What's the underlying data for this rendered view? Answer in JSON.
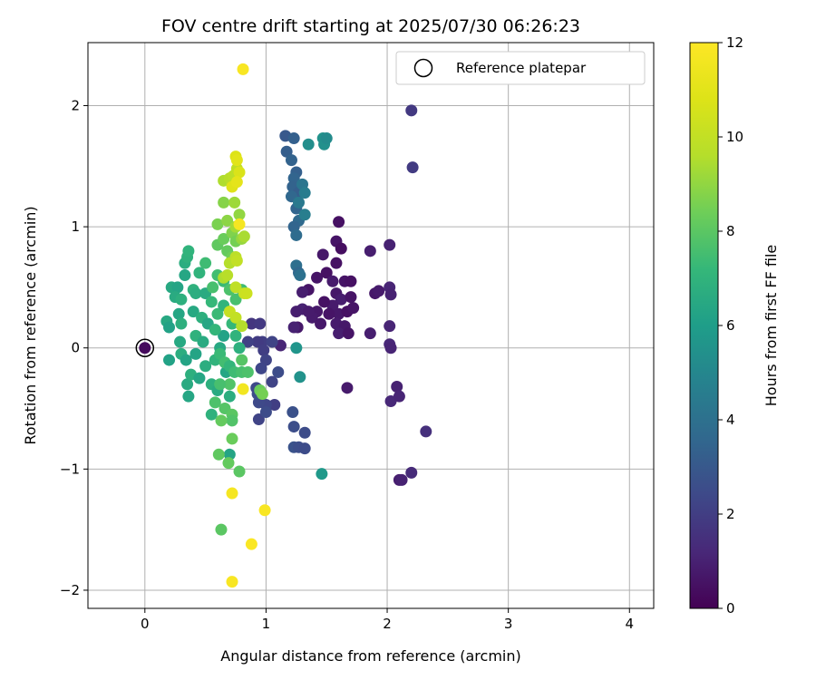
{
  "chart_data": {
    "type": "scatter",
    "title": "FOV centre drift starting at 2025/07/30 06:26:23",
    "xlabel": "Angular distance from reference (arcmin)",
    "ylabel": "Rotation from reference (arcmin)",
    "xlim": [
      -0.47,
      4.2
    ],
    "ylim": [
      -2.15,
      2.52
    ],
    "xticks": [
      0,
      1,
      2,
      3,
      4
    ],
    "yticks": [
      -2,
      -1,
      0,
      1,
      2
    ],
    "xtick_labels": [
      "0",
      "1",
      "2",
      "3",
      "4"
    ],
    "ytick_labels": [
      "−2",
      "−1",
      "0",
      "1",
      "2"
    ],
    "grid": true,
    "legend": {
      "placement": "top-right",
      "label": "Reference platepar"
    },
    "colorbar": {
      "label": "Hours from first FF file",
      "colormap": "viridis",
      "range": [
        0,
        12
      ],
      "ticks": [
        0,
        2,
        4,
        6,
        8,
        10,
        12
      ],
      "tick_labels": [
        "0",
        "2",
        "4",
        "6",
        "8",
        "10",
        "12"
      ]
    },
    "reference_point": {
      "x": 0,
      "y": 0
    },
    "points": [
      {
        "x": 0.0,
        "y": 0.0,
        "h": 0.3
      },
      {
        "x": 1.6,
        "y": 1.04,
        "h": 0.5
      },
      {
        "x": 1.58,
        "y": 0.88,
        "h": 0.6
      },
      {
        "x": 1.62,
        "y": 0.82,
        "h": 0.4
      },
      {
        "x": 1.58,
        "y": 0.7,
        "h": 0.5
      },
      {
        "x": 1.47,
        "y": 0.77,
        "h": 0.7
      },
      {
        "x": 1.42,
        "y": 0.58,
        "h": 0.6
      },
      {
        "x": 1.5,
        "y": 0.62,
        "h": 0.5
      },
      {
        "x": 1.55,
        "y": 0.55,
        "h": 0.8
      },
      {
        "x": 1.65,
        "y": 0.55,
        "h": 0.6
      },
      {
        "x": 1.7,
        "y": 0.55,
        "h": 0.5
      },
      {
        "x": 1.58,
        "y": 0.45,
        "h": 0.7
      },
      {
        "x": 1.62,
        "y": 0.4,
        "h": 0.9
      },
      {
        "x": 1.7,
        "y": 0.42,
        "h": 0.6
      },
      {
        "x": 1.55,
        "y": 0.35,
        "h": 0.8
      },
      {
        "x": 1.6,
        "y": 0.28,
        "h": 0.7
      },
      {
        "x": 1.67,
        "y": 0.3,
        "h": 0.5
      },
      {
        "x": 1.72,
        "y": 0.33,
        "h": 0.6
      },
      {
        "x": 1.58,
        "y": 0.2,
        "h": 0.8
      },
      {
        "x": 1.65,
        "y": 0.18,
        "h": 0.7
      },
      {
        "x": 1.6,
        "y": 0.12,
        "h": 0.9
      },
      {
        "x": 1.68,
        "y": 0.12,
        "h": 0.6
      },
      {
        "x": 1.42,
        "y": 0.3,
        "h": 0.7
      },
      {
        "x": 1.38,
        "y": 0.25,
        "h": 0.8
      },
      {
        "x": 1.35,
        "y": 0.48,
        "h": 0.6
      },
      {
        "x": 1.3,
        "y": 0.46,
        "h": 0.9
      },
      {
        "x": 1.3,
        "y": 0.32,
        "h": 1.0
      },
      {
        "x": 1.35,
        "y": 0.3,
        "h": 0.8
      },
      {
        "x": 1.25,
        "y": 0.3,
        "h": 0.9
      },
      {
        "x": 1.26,
        "y": 0.17,
        "h": 0.7
      },
      {
        "x": 1.23,
        "y": 0.17,
        "h": 1.0
      },
      {
        "x": 1.12,
        "y": 0.02,
        "h": 1.1
      },
      {
        "x": 1.48,
        "y": 0.38,
        "h": 0.5
      },
      {
        "x": 1.52,
        "y": 0.28,
        "h": 0.6
      },
      {
        "x": 1.45,
        "y": 0.2,
        "h": 0.7
      },
      {
        "x": 1.67,
        "y": -0.33,
        "h": 0.8
      },
      {
        "x": 1.86,
        "y": 0.8,
        "h": 0.9
      },
      {
        "x": 1.9,
        "y": 0.45,
        "h": 0.7
      },
      {
        "x": 1.93,
        "y": 0.47,
        "h": 0.8
      },
      {
        "x": 1.86,
        "y": 0.12,
        "h": 0.9
      },
      {
        "x": 2.02,
        "y": 0.85,
        "h": 1.0
      },
      {
        "x": 2.02,
        "y": 0.5,
        "h": 1.1
      },
      {
        "x": 2.03,
        "y": 0.44,
        "h": 1.0
      },
      {
        "x": 2.02,
        "y": 0.18,
        "h": 1.1
      },
      {
        "x": 2.02,
        "y": 0.03,
        "h": 1.2
      },
      {
        "x": 2.03,
        "y": 0.0,
        "h": 1.1
      },
      {
        "x": 2.03,
        "y": -0.44,
        "h": 1.2
      },
      {
        "x": 2.08,
        "y": -0.32,
        "h": 1.0
      },
      {
        "x": 2.1,
        "y": -0.4,
        "h": 1.1
      },
      {
        "x": 2.1,
        "y": -1.09,
        "h": 0.9
      },
      {
        "x": 2.12,
        "y": -1.09,
        "h": 1.0
      },
      {
        "x": 2.2,
        "y": -1.03,
        "h": 1.3
      },
      {
        "x": 2.32,
        "y": -0.69,
        "h": 1.5
      },
      {
        "x": 2.2,
        "y": 1.96,
        "h": 1.8
      },
      {
        "x": 2.21,
        "y": 1.49,
        "h": 1.9
      },
      {
        "x": 0.88,
        "y": 0.2,
        "h": 1.7
      },
      {
        "x": 0.95,
        "y": 0.2,
        "h": 1.8
      },
      {
        "x": 0.97,
        "y": 0.05,
        "h": 2.0
      },
      {
        "x": 0.93,
        "y": 0.05,
        "h": 1.9
      },
      {
        "x": 0.85,
        "y": 0.05,
        "h": 2.1
      },
      {
        "x": 1.05,
        "y": 0.05,
        "h": 2.2
      },
      {
        "x": 0.98,
        "y": -0.02,
        "h": 2.0
      },
      {
        "x": 1.0,
        "y": -0.1,
        "h": 2.2
      },
      {
        "x": 0.96,
        "y": -0.17,
        "h": 2.3
      },
      {
        "x": 1.05,
        "y": -0.28,
        "h": 2.2
      },
      {
        "x": 1.07,
        "y": -0.47,
        "h": 2.0
      },
      {
        "x": 1.0,
        "y": -0.47,
        "h": 2.3
      },
      {
        "x": 0.94,
        "y": -0.45,
        "h": 2.4
      },
      {
        "x": 0.94,
        "y": -0.59,
        "h": 2.2
      },
      {
        "x": 1.0,
        "y": -0.53,
        "h": 2.5
      },
      {
        "x": 0.93,
        "y": -0.38,
        "h": 2.6
      },
      {
        "x": 0.92,
        "y": -0.33,
        "h": 2.4
      },
      {
        "x": 1.1,
        "y": -0.2,
        "h": 2.5
      },
      {
        "x": 1.22,
        "y": -0.53,
        "h": 2.7
      },
      {
        "x": 1.23,
        "y": -0.65,
        "h": 2.6
      },
      {
        "x": 1.32,
        "y": -0.7,
        "h": 2.5
      },
      {
        "x": 1.23,
        "y": -0.82,
        "h": 2.8
      },
      {
        "x": 1.27,
        "y": -0.82,
        "h": 2.6
      },
      {
        "x": 1.32,
        "y": -0.83,
        "h": 2.5
      },
      {
        "x": 1.16,
        "y": 1.75,
        "h": 3.0
      },
      {
        "x": 1.23,
        "y": 1.73,
        "h": 3.3
      },
      {
        "x": 1.17,
        "y": 1.62,
        "h": 3.2
      },
      {
        "x": 1.21,
        "y": 1.55,
        "h": 3.4
      },
      {
        "x": 1.25,
        "y": 1.45,
        "h": 3.3
      },
      {
        "x": 1.23,
        "y": 1.4,
        "h": 3.5
      },
      {
        "x": 1.22,
        "y": 1.33,
        "h": 3.4
      },
      {
        "x": 1.27,
        "y": 1.28,
        "h": 3.2
      },
      {
        "x": 1.21,
        "y": 1.25,
        "h": 3.6
      },
      {
        "x": 1.25,
        "y": 1.15,
        "h": 3.5
      },
      {
        "x": 1.27,
        "y": 1.05,
        "h": 3.7
      },
      {
        "x": 1.23,
        "y": 1.0,
        "h": 3.5
      },
      {
        "x": 1.25,
        "y": 0.93,
        "h": 3.8
      },
      {
        "x": 1.25,
        "y": 0.68,
        "h": 3.9
      },
      {
        "x": 1.27,
        "y": 0.62,
        "h": 3.6
      },
      {
        "x": 1.28,
        "y": 0.6,
        "h": 4.0
      },
      {
        "x": 1.3,
        "y": 1.35,
        "h": 4.2
      },
      {
        "x": 1.32,
        "y": 1.28,
        "h": 4.5
      },
      {
        "x": 1.27,
        "y": 1.2,
        "h": 4.4
      },
      {
        "x": 1.32,
        "y": 1.1,
        "h": 4.6
      },
      {
        "x": 1.35,
        "y": 1.68,
        "h": 5.3
      },
      {
        "x": 1.47,
        "y": 1.73,
        "h": 5.5
      },
      {
        "x": 1.48,
        "y": 1.68,
        "h": 5.4
      },
      {
        "x": 1.5,
        "y": 1.73,
        "h": 5.2
      },
      {
        "x": 1.25,
        "y": 0.0,
        "h": 5.6
      },
      {
        "x": 1.28,
        "y": -0.24,
        "h": 5.5
      },
      {
        "x": 1.46,
        "y": -1.04,
        "h": 5.8
      },
      {
        "x": 0.22,
        "y": 0.5,
        "h": 6.5
      },
      {
        "x": 0.27,
        "y": 0.5,
        "h": 6.3
      },
      {
        "x": 0.25,
        "y": 0.42,
        "h": 6.6
      },
      {
        "x": 0.3,
        "y": 0.4,
        "h": 6.8
      },
      {
        "x": 0.33,
        "y": 0.6,
        "h": 6.4
      },
      {
        "x": 0.33,
        "y": 0.7,
        "h": 6.7
      },
      {
        "x": 0.35,
        "y": 0.75,
        "h": 6.9
      },
      {
        "x": 0.36,
        "y": 0.8,
        "h": 7.0
      },
      {
        "x": 0.18,
        "y": 0.22,
        "h": 6.5
      },
      {
        "x": 0.2,
        "y": 0.17,
        "h": 6.2
      },
      {
        "x": 0.28,
        "y": 0.28,
        "h": 6.4
      },
      {
        "x": 0.3,
        "y": 0.2,
        "h": 6.8
      },
      {
        "x": 0.29,
        "y": 0.05,
        "h": 6.5
      },
      {
        "x": 0.3,
        "y": -0.05,
        "h": 6.7
      },
      {
        "x": 0.34,
        "y": -0.1,
        "h": 6.3
      },
      {
        "x": 0.35,
        "y": -0.3,
        "h": 6.6
      },
      {
        "x": 0.36,
        "y": -0.4,
        "h": 6.4
      },
      {
        "x": 0.38,
        "y": -0.22,
        "h": 6.8
      },
      {
        "x": 0.2,
        "y": -0.1,
        "h": 6.2
      },
      {
        "x": 0.4,
        "y": 0.48,
        "h": 6.9
      },
      {
        "x": 0.45,
        "y": 0.62,
        "h": 7.0
      },
      {
        "x": 0.42,
        "y": 0.45,
        "h": 6.7
      },
      {
        "x": 0.5,
        "y": 0.45,
        "h": 6.6
      },
      {
        "x": 0.4,
        "y": 0.3,
        "h": 6.5
      },
      {
        "x": 0.47,
        "y": 0.25,
        "h": 6.8
      },
      {
        "x": 0.52,
        "y": 0.2,
        "h": 6.4
      },
      {
        "x": 0.42,
        "y": 0.1,
        "h": 6.9
      },
      {
        "x": 0.48,
        "y": 0.05,
        "h": 6.6
      },
      {
        "x": 0.42,
        "y": -0.05,
        "h": 6.3
      },
      {
        "x": 0.5,
        "y": -0.15,
        "h": 6.7
      },
      {
        "x": 0.45,
        "y": -0.25,
        "h": 6.4
      },
      {
        "x": 0.55,
        "y": -0.3,
        "h": 6.8
      },
      {
        "x": 0.55,
        "y": -0.55,
        "h": 6.9
      },
      {
        "x": 0.6,
        "y": -0.35,
        "h": 6.6
      },
      {
        "x": 0.58,
        "y": -0.1,
        "h": 7.0
      },
      {
        "x": 0.62,
        "y": 0.0,
        "h": 6.5
      },
      {
        "x": 0.65,
        "y": 0.1,
        "h": 6.2
      },
      {
        "x": 0.67,
        "y": -0.2,
        "h": 6.4
      },
      {
        "x": 0.7,
        "y": -0.88,
        "h": 6.3
      },
      {
        "x": 0.7,
        "y": -0.4,
        "h": 6.7
      },
      {
        "x": 0.55,
        "y": 0.38,
        "h": 7.2
      },
      {
        "x": 0.6,
        "y": 0.28,
        "h": 7.3
      },
      {
        "x": 0.58,
        "y": 0.15,
        "h": 7.1
      },
      {
        "x": 0.65,
        "y": 0.35,
        "h": 7.0
      },
      {
        "x": 0.5,
        "y": 0.7,
        "h": 7.4
      },
      {
        "x": 0.56,
        "y": 0.5,
        "h": 7.6
      },
      {
        "x": 0.6,
        "y": 0.6,
        "h": 7.5
      },
      {
        "x": 0.65,
        "y": 0.55,
        "h": 7.3
      },
      {
        "x": 0.7,
        "y": 0.48,
        "h": 7.7
      },
      {
        "x": 0.75,
        "y": 0.4,
        "h": 7.6
      },
      {
        "x": 0.8,
        "y": 0.48,
        "h": 7.4
      },
      {
        "x": 0.72,
        "y": 0.2,
        "h": 7.2
      },
      {
        "x": 0.75,
        "y": 0.1,
        "h": 7.0
      },
      {
        "x": 0.78,
        "y": 0.0,
        "h": 6.8
      },
      {
        "x": 0.62,
        "y": -0.05,
        "h": 7.3
      },
      {
        "x": 0.66,
        "y": -0.12,
        "h": 7.5
      },
      {
        "x": 0.7,
        "y": -0.15,
        "h": 7.1
      },
      {
        "x": 0.74,
        "y": -0.2,
        "h": 7.4
      },
      {
        "x": 0.7,
        "y": -0.3,
        "h": 7.8
      },
      {
        "x": 0.62,
        "y": -0.3,
        "h": 7.6
      },
      {
        "x": 0.58,
        "y": -0.45,
        "h": 7.7
      },
      {
        "x": 0.66,
        "y": -0.5,
        "h": 7.9
      },
      {
        "x": 0.72,
        "y": -0.55,
        "h": 8.0
      },
      {
        "x": 0.72,
        "y": -0.6,
        "h": 7.8
      },
      {
        "x": 0.8,
        "y": -0.2,
        "h": 7.6
      },
      {
        "x": 0.85,
        "y": -0.2,
        "h": 7.7
      },
      {
        "x": 0.8,
        "y": -0.1,
        "h": 7.9
      },
      {
        "x": 0.95,
        "y": -0.35,
        "h": 8.3
      },
      {
        "x": 0.97,
        "y": -0.38,
        "h": 8.5
      },
      {
        "x": 0.6,
        "y": 0.85,
        "h": 8.1
      },
      {
        "x": 0.65,
        "y": 0.9,
        "h": 8.3
      },
      {
        "x": 0.68,
        "y": 0.8,
        "h": 8.2
      },
      {
        "x": 0.72,
        "y": 0.75,
        "h": 8.4
      },
      {
        "x": 0.6,
        "y": 1.02,
        "h": 8.6
      },
      {
        "x": 0.65,
        "y": 1.2,
        "h": 8.8
      },
      {
        "x": 0.68,
        "y": 1.05,
        "h": 8.9
      },
      {
        "x": 0.72,
        "y": 0.95,
        "h": 8.7
      },
      {
        "x": 0.75,
        "y": 0.88,
        "h": 8.5
      },
      {
        "x": 0.63,
        "y": -0.6,
        "h": 8.2
      },
      {
        "x": 0.72,
        "y": -0.75,
        "h": 8.3
      },
      {
        "x": 0.69,
        "y": -0.95,
        "h": 8.2
      },
      {
        "x": 0.78,
        "y": -1.02,
        "h": 8.0
      },
      {
        "x": 0.61,
        "y": -0.88,
        "h": 8.1
      },
      {
        "x": 0.63,
        "y": -1.5,
        "h": 8.0
      },
      {
        "x": 0.74,
        "y": 1.2,
        "h": 9.2
      },
      {
        "x": 0.78,
        "y": 1.1,
        "h": 9.0
      },
      {
        "x": 0.75,
        "y": 1.0,
        "h": 9.3
      },
      {
        "x": 0.8,
        "y": 0.9,
        "h": 9.1
      },
      {
        "x": 0.82,
        "y": 0.92,
        "h": 9.4
      },
      {
        "x": 0.65,
        "y": 1.38,
        "h": 9.5
      },
      {
        "x": 0.7,
        "y": 1.4,
        "h": 9.7
      },
      {
        "x": 0.73,
        "y": 1.42,
        "h": 9.8
      },
      {
        "x": 0.76,
        "y": 1.48,
        "h": 9.9
      },
      {
        "x": 0.7,
        "y": 0.7,
        "h": 9.6
      },
      {
        "x": 0.75,
        "y": 0.75,
        "h": 9.8
      },
      {
        "x": 0.76,
        "y": 0.72,
        "h": 10.0
      },
      {
        "x": 0.65,
        "y": 0.58,
        "h": 9.5
      },
      {
        "x": 0.68,
        "y": 0.6,
        "h": 9.7
      },
      {
        "x": 0.75,
        "y": 0.5,
        "h": 9.9
      },
      {
        "x": 0.7,
        "y": 0.3,
        "h": 10.1
      },
      {
        "x": 0.75,
        "y": 0.25,
        "h": 10.0
      },
      {
        "x": 0.8,
        "y": 0.18,
        "h": 9.6
      },
      {
        "x": 0.82,
        "y": 0.45,
        "h": 10.2
      },
      {
        "x": 0.84,
        "y": 0.45,
        "h": 10.3
      },
      {
        "x": 0.75,
        "y": 1.58,
        "h": 10.8
      },
      {
        "x": 0.76,
        "y": 1.55,
        "h": 11.0
      },
      {
        "x": 0.78,
        "y": 1.45,
        "h": 10.7
      },
      {
        "x": 0.72,
        "y": 1.33,
        "h": 10.9
      },
      {
        "x": 0.76,
        "y": 1.37,
        "h": 11.1
      },
      {
        "x": 0.78,
        "y": 1.02,
        "h": 11.7
      },
      {
        "x": 0.81,
        "y": 2.3,
        "h": 11.8
      },
      {
        "x": 0.81,
        "y": -0.34,
        "h": 11.6
      },
      {
        "x": 0.72,
        "y": -1.2,
        "h": 11.7
      },
      {
        "x": 0.99,
        "y": -1.34,
        "h": 11.8
      },
      {
        "x": 0.88,
        "y": -1.62,
        "h": 11.9
      },
      {
        "x": 0.72,
        "y": -1.93,
        "h": 11.8
      }
    ]
  }
}
